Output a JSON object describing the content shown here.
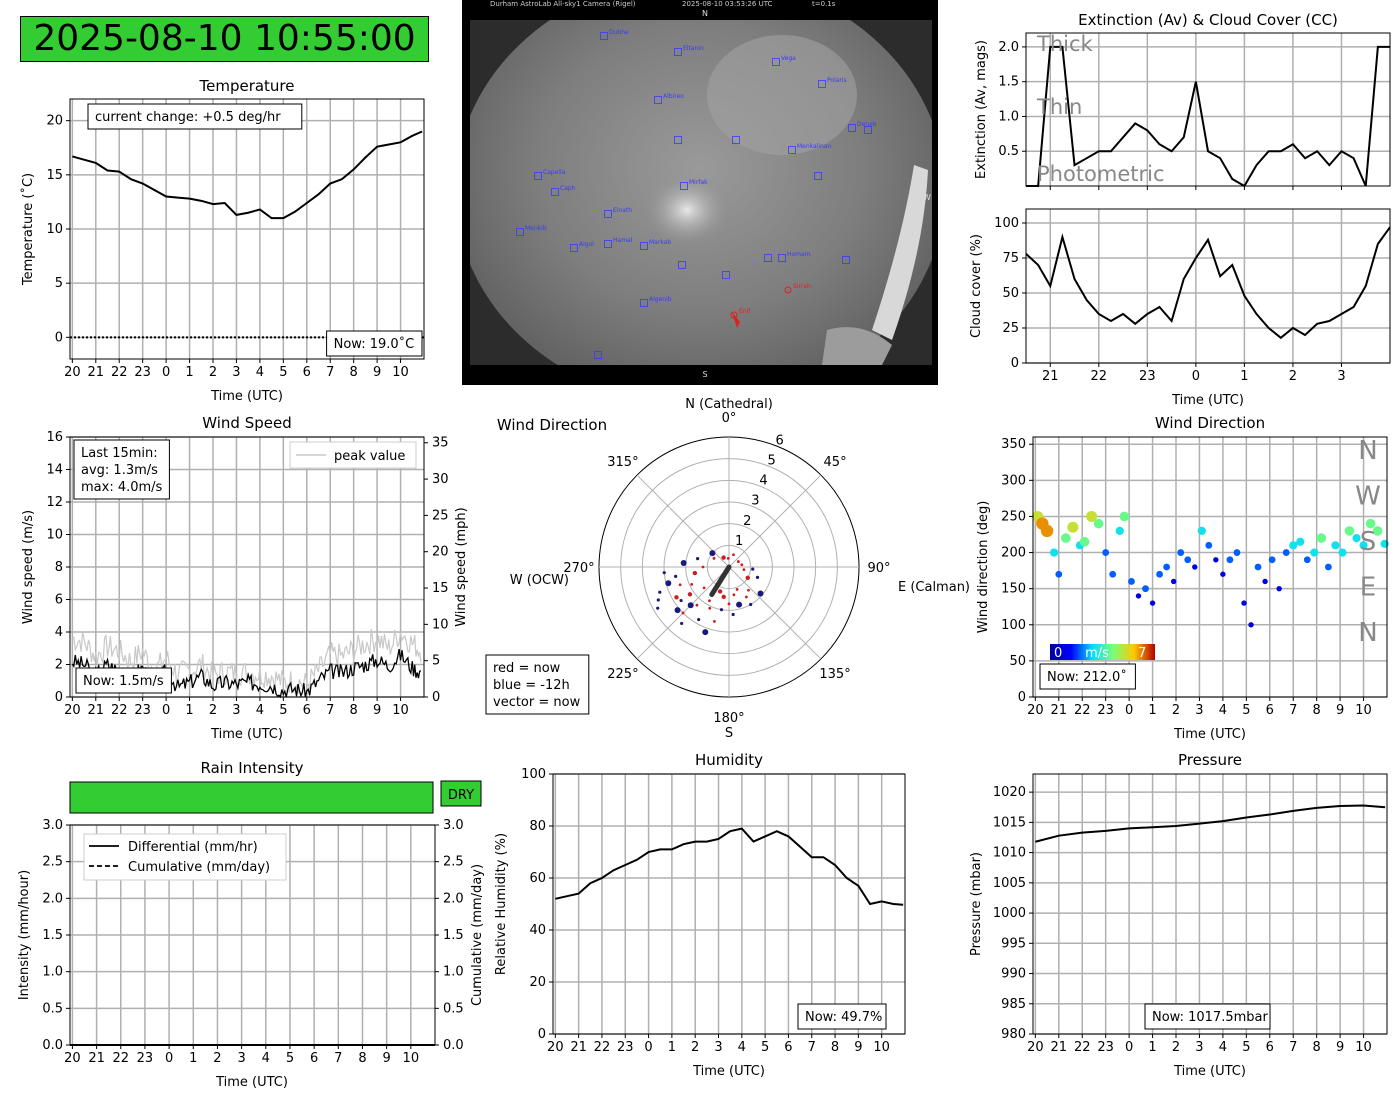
{
  "clock": "2025-08-10 10:55:00",
  "hour_ticks_24h": [
    "20",
    "21",
    "22",
    "23",
    "0",
    "1",
    "2",
    "3",
    "4",
    "5",
    "6",
    "7",
    "8",
    "9",
    "10"
  ],
  "hour_ticks_cloud": [
    "21",
    "22",
    "23",
    "0",
    "1",
    "2",
    "3"
  ],
  "xlabel": "Time (UTC)",
  "colors": {
    "status_green": "#33cc33",
    "grid": "#b0b0b0",
    "line": "#000000"
  },
  "allsky": {
    "header_left": "Durham AstroLab All-sky1 Camera (Rigel)",
    "header_time": "2025-08-10 03:53:26 UTC",
    "header_exp": "t=0.1s",
    "north": "N",
    "south": "S",
    "west": "W",
    "stars": [
      {
        "name": "Dubhe",
        "blue": true
      },
      {
        "name": "Eltanin",
        "blue": true
      },
      {
        "name": "Vega",
        "blue": true
      },
      {
        "name": "Polaris",
        "blue": true
      },
      {
        "name": "Albireo",
        "blue": true
      },
      {
        "name": "Deneb",
        "blue": true
      },
      {
        "name": "Menkalinan",
        "blue": true
      },
      {
        "name": "Capella",
        "blue": true
      },
      {
        "name": "Caph",
        "blue": true
      },
      {
        "name": "Mirfak",
        "blue": true
      },
      {
        "name": "Elnath",
        "blue": true
      },
      {
        "name": "Menkib",
        "blue": true
      },
      {
        "name": "Algol",
        "blue": true
      },
      {
        "name": "Hamal",
        "blue": true
      },
      {
        "name": "Markab",
        "blue": true
      },
      {
        "name": "Homam",
        "blue": true
      },
      {
        "name": "Algenib",
        "blue": true
      },
      {
        "name": "Sirrah",
        "blue": false
      },
      {
        "name": "Enif",
        "blue": false
      }
    ]
  },
  "chart_data": [
    {
      "id": "temperature",
      "type": "line",
      "title": "Temperature",
      "xlabel": "Time (UTC)",
      "ylabel": "Temperature (˚C)",
      "ylim": [
        -2,
        22
      ],
      "yticks": [
        0,
        5,
        10,
        15,
        20
      ],
      "annotation": "current change: +0.5 deg/hr",
      "now_label": "Now: 19.0˚C",
      "grid": true,
      "x": [
        0,
        0.5,
        1,
        1.5,
        2,
        2.5,
        3,
        3.5,
        4,
        4.5,
        5,
        5.5,
        6,
        6.5,
        7,
        7.5,
        8,
        8.5,
        9,
        9.5,
        10,
        10.5,
        11,
        11.5,
        12,
        12.5,
        13,
        13.5,
        14,
        14.5,
        14.92
      ],
      "values": [
        16.7,
        16.4,
        16.1,
        15.4,
        15.3,
        14.6,
        14.2,
        13.6,
        13.0,
        12.9,
        12.8,
        12.6,
        12.3,
        12.4,
        11.3,
        11.5,
        11.8,
        11.0,
        11.0,
        11.6,
        12.4,
        13.2,
        14.2,
        14.6,
        15.5,
        16.6,
        17.6,
        17.8,
        18.0,
        18.6,
        19.0
      ],
      "zero_line": 0
    },
    {
      "id": "wind_speed",
      "type": "line",
      "title": "Wind Speed",
      "xlabel": "Time (UTC)",
      "ylabel": "Wind speed (m/s)",
      "ylabel_right": "Wind speed (mph)",
      "ylim": [
        0,
        16
      ],
      "yticks": [
        0,
        2,
        4,
        6,
        8,
        10,
        12,
        14,
        16
      ],
      "yticks_right": [
        0,
        5,
        10,
        15,
        20,
        25,
        30,
        35
      ],
      "legend": "peak value",
      "legend_position": "top-right",
      "annotation": "Last 15min:\navg: 1.3m/s\nmax: 4.0m/s",
      "now_label": "Now: 1.5m/s",
      "grid": true,
      "x": [
        0,
        0.5,
        1,
        1.5,
        2,
        2.5,
        3,
        3.5,
        4,
        4.5,
        5,
        5.5,
        6,
        6.5,
        7,
        7.5,
        8,
        8.5,
        9,
        9.5,
        10,
        10.5,
        11,
        11.5,
        12,
        12.5,
        13,
        13.5,
        14,
        14.5,
        14.92
      ],
      "series": [
        {
          "name": "",
          "values": [
            2.2,
            2.0,
            1.4,
            2.0,
            1.6,
            1.3,
            1.8,
            0.8,
            1.6,
            0.6,
            0.9,
            1.3,
            0.7,
            0.9,
            0.8,
            0.9,
            0.8,
            0.7,
            0.4,
            0.5,
            0.3,
            1.0,
            1.6,
            1.5,
            1.8,
            2.0,
            2.3,
            1.9,
            2.6,
            1.8,
            1.5
          ]
        },
        {
          "name": "peak value",
          "values": [
            3.6,
            3.4,
            2.5,
            3.1,
            2.8,
            2.2,
            2.8,
            1.6,
            2.4,
            1.4,
            1.6,
            2.0,
            1.3,
            1.5,
            1.5,
            1.5,
            1.4,
            1.3,
            0.9,
            1.0,
            0.8,
            1.6,
            2.6,
            2.5,
            2.9,
            3.3,
            3.6,
            3.0,
            4.0,
            3.3,
            2.8
          ]
        }
      ]
    },
    {
      "id": "wind_direction_polar",
      "type": "scatter",
      "title": "Wind Direction",
      "north_label": "N (Cathedral)",
      "east_label": "E (Calman)",
      "west_label": "W (OCW)",
      "south_label": "S",
      "angle_labels": [
        "0°",
        "45°",
        "90°",
        "135°",
        "180°",
        "225°",
        "270°",
        "315°"
      ],
      "rlim": [
        0,
        6
      ],
      "rticks": [
        1,
        2,
        3,
        4,
        5,
        6
      ],
      "legend_lines": [
        "red = now",
        "blue = -12h",
        "vector = now"
      ],
      "vector": {
        "angle_deg": 212,
        "r": 1.5
      },
      "points_red": [
        [
          200,
          1.2
        ],
        [
          210,
          1.8
        ],
        [
          220,
          2.3
        ],
        [
          230,
          1.5
        ],
        [
          240,
          2.8
        ],
        [
          205,
          2.1
        ],
        [
          215,
          1.0
        ],
        [
          225,
          3.0
        ],
        [
          235,
          2.2
        ],
        [
          245,
          1.9
        ],
        [
          195,
          2.6
        ],
        [
          250,
          2.4
        ],
        [
          190,
          1.4
        ],
        [
          180,
          1.7
        ],
        [
          170,
          1.3
        ],
        [
          160,
          1.1
        ],
        [
          260,
          1.6
        ],
        [
          270,
          1.2
        ],
        [
          150,
          1.6
        ],
        [
          140,
          1.4
        ],
        [
          120,
          1.0
        ],
        [
          100,
          0.7
        ],
        [
          80,
          0.6
        ],
        [
          300,
          0.8
        ],
        [
          330,
          0.5
        ],
        [
          355,
          0.4
        ],
        [
          20,
          0.6
        ],
        [
          60,
          0.5
        ]
      ],
      "points_blue": [
        [
          230,
          3.1
        ],
        [
          240,
          3.8
        ],
        [
          250,
          3.4
        ],
        [
          255,
          2.9
        ],
        [
          235,
          2.7
        ],
        [
          220,
          3.4
        ],
        [
          225,
          2.5
        ],
        [
          245,
          3.6
        ],
        [
          210,
          2.8
        ],
        [
          200,
          3.2
        ],
        [
          190,
          2.0
        ],
        [
          175,
          2.2
        ],
        [
          165,
          1.8
        ],
        [
          260,
          2.5
        ],
        [
          265,
          3.0
        ],
        [
          275,
          2.1
        ],
        [
          285,
          1.5
        ],
        [
          150,
          2.0
        ],
        [
          130,
          1.9
        ],
        [
          110,
          1.4
        ],
        [
          95,
          1.1
        ],
        [
          310,
          1.0
        ]
      ]
    },
    {
      "id": "extinction",
      "type": "line",
      "title": "Extinction (Av) & Cloud Cover (CC)",
      "ylabel": "Extinction (Av, mags)",
      "ylim": [
        0,
        2.2
      ],
      "yticks": [
        0.5,
        1.0,
        1.5,
        2.0
      ],
      "bands": [
        "Thick",
        "Thin",
        "Photometric"
      ],
      "grid": true,
      "x": [
        0,
        0.25,
        0.5,
        0.75,
        1,
        1.25,
        1.5,
        1.75,
        2,
        2.25,
        2.5,
        2.75,
        3,
        3.25,
        3.5,
        3.75,
        4,
        4.25,
        4.5,
        4.75,
        5,
        5.25,
        5.5,
        5.75,
        6,
        6.25,
        6.5,
        6.75,
        7,
        7.25,
        7.5
      ],
      "values": [
        0.0,
        0.0,
        2.0,
        2.0,
        0.3,
        0.4,
        0.5,
        0.5,
        0.7,
        0.9,
        0.8,
        0.6,
        0.5,
        0.7,
        1.5,
        0.5,
        0.4,
        0.1,
        0.0,
        0.3,
        0.5,
        0.5,
        0.6,
        0.4,
        0.5,
        0.3,
        0.5,
        0.4,
        0.0,
        2.0,
        2.0
      ]
    },
    {
      "id": "cloud_cover",
      "type": "line",
      "xlabel": "Time (UTC)",
      "ylabel": "Cloud cover (%)",
      "ylim": [
        0,
        110
      ],
      "yticks": [
        0,
        25,
        50,
        75,
        100
      ],
      "grid": true,
      "x": [
        0,
        0.25,
        0.5,
        0.75,
        1,
        1.25,
        1.5,
        1.75,
        2,
        2.25,
        2.5,
        2.75,
        3,
        3.25,
        3.5,
        3.75,
        4,
        4.25,
        4.5,
        4.75,
        5,
        5.25,
        5.5,
        5.75,
        6,
        6.25,
        6.5,
        6.75,
        7,
        7.25,
        7.5
      ],
      "values": [
        78,
        70,
        55,
        90,
        60,
        45,
        35,
        30,
        35,
        28,
        35,
        40,
        30,
        60,
        75,
        88,
        62,
        70,
        48,
        35,
        25,
        18,
        25,
        20,
        28,
        30,
        35,
        40,
        55,
        85,
        97
      ]
    },
    {
      "id": "wind_direction",
      "type": "scatter",
      "title": "Wind Direction",
      "xlabel": "Time (UTC)",
      "ylabel": "Wind direction (deg)",
      "ylim": [
        0,
        360
      ],
      "yticks": [
        0,
        50,
        100,
        150,
        200,
        250,
        300,
        350
      ],
      "compass": [
        "N",
        "W",
        "S",
        "E",
        "N"
      ],
      "colorbar": {
        "min": "0",
        "label": "m/s",
        "max": "7"
      },
      "now_label": "Now: 212.0˚",
      "grid": true,
      "x": [
        0.1,
        0.3,
        0.5,
        0.8,
        1.0,
        1.3,
        1.6,
        1.9,
        2.1,
        2.4,
        2.7,
        3.0,
        3.3,
        3.6,
        3.8,
        4.1,
        4.4,
        4.7,
        5.0,
        5.3,
        5.6,
        5.9,
        6.2,
        6.5,
        6.8,
        7.1,
        7.4,
        7.7,
        8.0,
        8.3,
        8.6,
        8.9,
        9.2,
        9.5,
        9.8,
        10.1,
        10.4,
        10.7,
        11.0,
        11.3,
        11.6,
        11.9,
        12.2,
        12.5,
        12.8,
        13.1,
        13.4,
        13.7,
        14.0,
        14.3,
        14.6,
        14.9
      ],
      "values": [
        250,
        240,
        230,
        200,
        170,
        220,
        235,
        210,
        215,
        250,
        240,
        200,
        170,
        230,
        250,
        160,
        140,
        150,
        130,
        170,
        180,
        160,
        200,
        190,
        180,
        230,
        210,
        190,
        170,
        190,
        200,
        130,
        100,
        180,
        160,
        190,
        150,
        200,
        210,
        215,
        190,
        200,
        220,
        180,
        210,
        200,
        230,
        220,
        210,
        240,
        230,
        212
      ],
      "speeds": [
        5,
        6,
        6,
        3,
        2,
        4,
        5,
        3,
        4,
        5,
        4,
        2,
        2,
        3,
        4,
        2,
        1,
        2,
        1,
        2,
        2,
        1,
        2,
        2,
        1,
        3,
        2,
        1,
        1,
        2,
        2,
        1,
        1,
        2,
        1,
        2,
        1,
        2,
        3,
        3,
        2,
        3,
        4,
        2,
        3,
        3,
        4,
        3,
        3,
        4,
        4,
        3
      ]
    },
    {
      "id": "rain",
      "type": "line",
      "title": "Rain Intensity",
      "status": "DRY",
      "xlabel": "Time (UTC)",
      "ylabel": "Intensity (mm/hour)",
      "ylabel_right": "Cumulative (mm/day)",
      "ylim": [
        0,
        3
      ],
      "yticks": [
        0.0,
        0.5,
        1.0,
        1.5,
        2.0,
        2.5,
        3.0
      ],
      "legend_position": "top-left",
      "grid": true,
      "series": [
        {
          "name": "Differential (mm/hr)",
          "values": [
            0,
            0
          ]
        },
        {
          "name": "Cumulative (mm/day)",
          "values": [
            0,
            0
          ]
        }
      ]
    },
    {
      "id": "humidity",
      "type": "line",
      "title": "Humidity",
      "xlabel": "Time (UTC)",
      "ylabel": "Relative Humidity (%)",
      "ylim": [
        0,
        100
      ],
      "yticks": [
        0,
        20,
        40,
        60,
        80,
        100
      ],
      "now_label": "Now: 49.7%",
      "grid": true,
      "x": [
        0,
        0.5,
        1,
        1.5,
        2,
        2.5,
        3,
        3.5,
        4,
        4.5,
        5,
        5.5,
        6,
        6.5,
        7,
        7.5,
        8,
        8.5,
        9,
        9.5,
        10,
        10.5,
        11,
        11.5,
        12,
        12.5,
        13,
        13.5,
        14,
        14.5,
        14.92
      ],
      "values": [
        52,
        53,
        54,
        58,
        60,
        63,
        65,
        67,
        70,
        71,
        71,
        73,
        74,
        74,
        75,
        78,
        79,
        74,
        76,
        78,
        76,
        72,
        68,
        68,
        65,
        60,
        57,
        50,
        51,
        50,
        49.7
      ]
    },
    {
      "id": "pressure",
      "type": "line",
      "title": "Pressure",
      "xlabel": "Time (UTC)",
      "ylabel": "Pressure (mbar)",
      "ylim": [
        980,
        1023
      ],
      "yticks": [
        980,
        985,
        990,
        995,
        1000,
        1005,
        1010,
        1015,
        1020
      ],
      "now_label": "Now: 1017.5mbar",
      "grid": true,
      "x": [
        0,
        1,
        2,
        3,
        4,
        5,
        6,
        7,
        8,
        9,
        10,
        11,
        12,
        13,
        14,
        14.92
      ],
      "values": [
        1011.8,
        1012.8,
        1013.3,
        1013.6,
        1014.0,
        1014.2,
        1014.4,
        1014.8,
        1015.2,
        1015.8,
        1016.3,
        1016.9,
        1017.4,
        1017.7,
        1017.8,
        1017.5
      ]
    }
  ]
}
